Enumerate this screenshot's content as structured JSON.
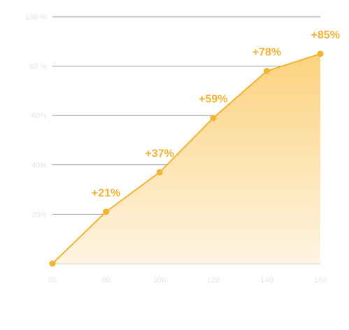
{
  "chart_data": {
    "type": "area",
    "x": [
      60,
      80,
      100,
      120,
      140,
      160
    ],
    "y": [
      0,
      21,
      37,
      59,
      78,
      85
    ],
    "data_labels": [
      "",
      "+21%",
      "+37%",
      "+59%",
      "+78%",
      "+85%"
    ],
    "x_ticks": [
      "60",
      "80",
      "100",
      "120",
      "140",
      "160"
    ],
    "y_ticks": [
      "100 %",
      "80 %",
      "60%",
      "40%",
      "20%"
    ],
    "y_tick_values": [
      100,
      80,
      60,
      40,
      20
    ],
    "xlim": [
      60,
      160
    ],
    "ylim": [
      0,
      100
    ],
    "title": "",
    "xlabel": "",
    "ylabel": "",
    "grid": "horizontal",
    "legend": "none",
    "colors": {
      "line": "#f2b234",
      "marker": "#f2b234",
      "fill_top": "#fbd27e",
      "fill_bottom": "#fff4e2",
      "grid": "#9a9a9a",
      "tick_text": "#e4e4e4",
      "label_text": "#f2b234"
    }
  }
}
